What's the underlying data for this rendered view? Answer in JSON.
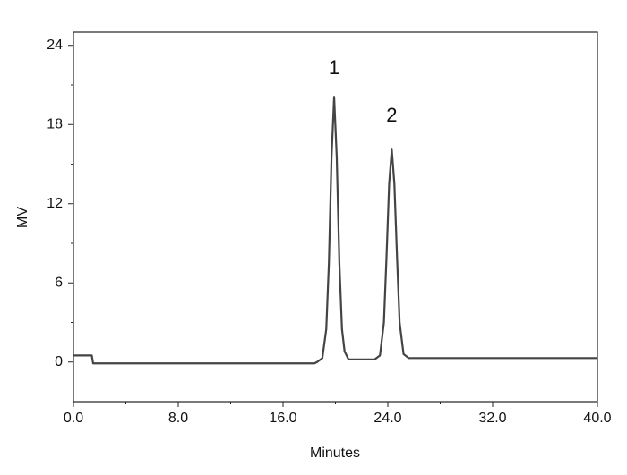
{
  "chart_data": {
    "type": "line",
    "x_label": "Minutes",
    "y_label": "MV",
    "xlim": [
      0,
      40
    ],
    "ylim": [
      -3,
      25
    ],
    "xticks": [
      {
        "value": 0,
        "label": "0.0"
      },
      {
        "value": 8,
        "label": "8.0"
      },
      {
        "value": 16,
        "label": "16.0"
      },
      {
        "value": 24,
        "label": "24.0"
      },
      {
        "value": 32,
        "label": "32.0"
      },
      {
        "value": 40,
        "label": "40.0"
      }
    ],
    "xminor_ticks": [
      4,
      12,
      20,
      28,
      36
    ],
    "yticks": [
      0,
      6,
      12,
      18,
      24
    ],
    "yminor_ticks": [
      3,
      9,
      15,
      21
    ],
    "series": [
      {
        "color": "#444444",
        "x": [
          0,
          1.4,
          1.5,
          18.4,
          18.6,
          19.0,
          19.3,
          19.5,
          19.7,
          19.9,
          20.1,
          20.3,
          20.5,
          20.7,
          21.0,
          23.0,
          23.4,
          23.7,
          23.9,
          24.1,
          24.3,
          24.5,
          24.7,
          24.9,
          25.2,
          25.6,
          40
        ],
        "values": [
          0.5,
          0.5,
          -0.1,
          -0.1,
          0,
          0.3,
          2.5,
          7.5,
          15.5,
          20.1,
          15.5,
          7.5,
          2.5,
          0.8,
          0.2,
          0.2,
          0.5,
          3,
          8,
          13.5,
          16.1,
          13.5,
          8,
          3,
          0.6,
          0.3,
          0.3
        ]
      }
    ],
    "annotations": [
      {
        "text": "1",
        "x": 19.9,
        "y": 22.2
      },
      {
        "text": "2",
        "x": 24.3,
        "y": 18.6
      }
    ]
  }
}
